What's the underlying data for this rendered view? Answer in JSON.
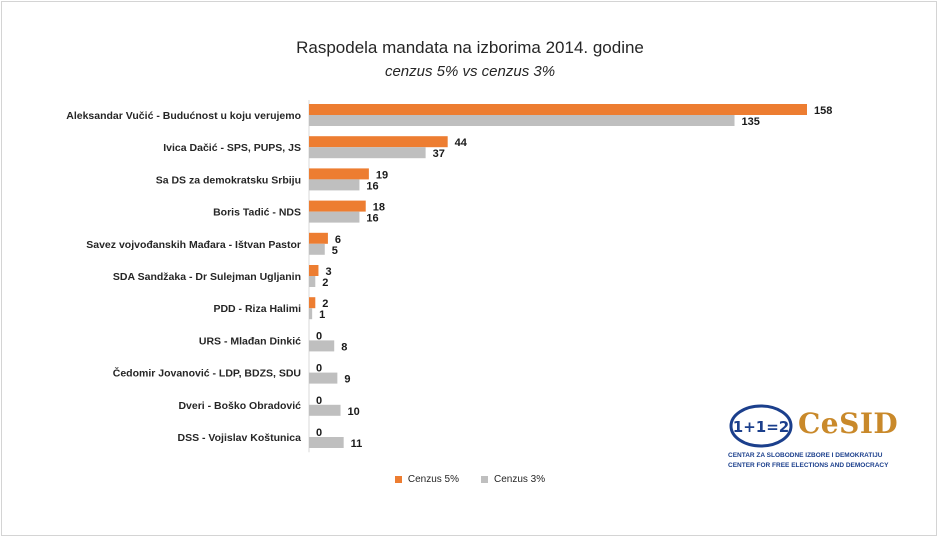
{
  "title": "Raspodela mandata na izborima 2014. godine",
  "subtitle": "cenzus 5% vs cenzus 3%",
  "colors": {
    "series1": "#ed7d31",
    "series2": "#bfbfbf"
  },
  "legend": {
    "series1": "Cenzus 5%",
    "series2": "Cenzus 3%"
  },
  "logo": {
    "word": "CeSID",
    "icon_text": "1+1=2",
    "line1": "CENTAR ZA SLOBODNE IZBORE I DEMOKRATIJU",
    "line2": "CENTER FOR FREE ELECTIONS AND DEMOCRACY"
  },
  "chart_data": {
    "type": "bar",
    "orientation": "horizontal",
    "title": "Raspodela mandata na izborima 2014. godine",
    "subtitle": "cenzus 5% vs cenzus 3%",
    "categories": [
      "Aleksandar Vučić - Budućnost u koju verujemo",
      "Ivica Dačić - SPS, PUPS, JS",
      "Sa DS za demokratsku Srbiju",
      "Boris Tadić - NDS",
      "Savez vojvođanskih Mađara - Ištvan Pastor",
      "SDA Sandžaka - Dr Sulejman Ugljanin",
      "PDD - Riza Halimi",
      "URS - Mlađan Dinkić",
      "Čedomir Jovanović - LDP, BDZS, SDU",
      "Dveri - Boško Obradović",
      "DSS - Vojislav Koštunica"
    ],
    "series": [
      {
        "name": "Cenzus 5%",
        "values": [
          158,
          44,
          19,
          18,
          6,
          3,
          2,
          0,
          0,
          0,
          0
        ]
      },
      {
        "name": "Cenzus 3%",
        "values": [
          135,
          37,
          16,
          16,
          5,
          2,
          1,
          8,
          9,
          10,
          11
        ]
      }
    ],
    "xlim": [
      0,
      158
    ],
    "grid": false,
    "legend_position": "bottom"
  }
}
